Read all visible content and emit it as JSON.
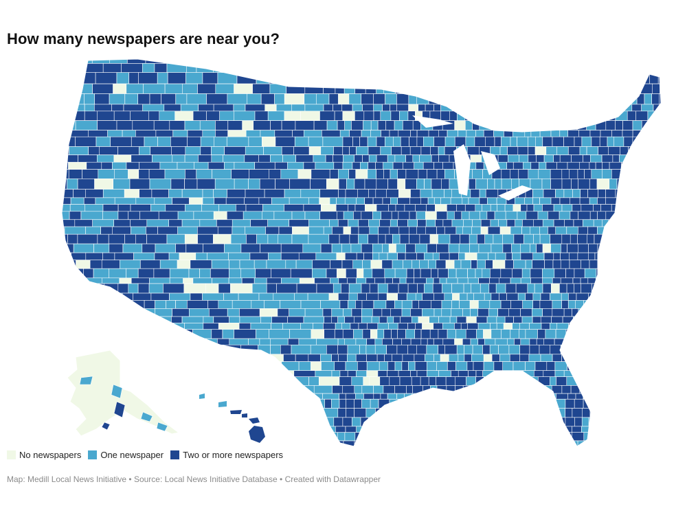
{
  "title": "How many newspapers are near you?",
  "colors": {
    "none": "#f0f8e6",
    "one": "#4aa8cf",
    "two_plus": "#1f4690",
    "border": "#ffffff"
  },
  "legend": {
    "items": [
      {
        "label": "No newspapers",
        "color": "#f0f8e6"
      },
      {
        "label": "One newspaper",
        "color": "#4aa8cf"
      },
      {
        "label": "Two or more newspapers",
        "color": "#1f4690"
      }
    ]
  },
  "footer": {
    "credit": "Map: Medill Local News Initiative • Source: Local News Initiative Database • Created with Datawrapper"
  }
}
